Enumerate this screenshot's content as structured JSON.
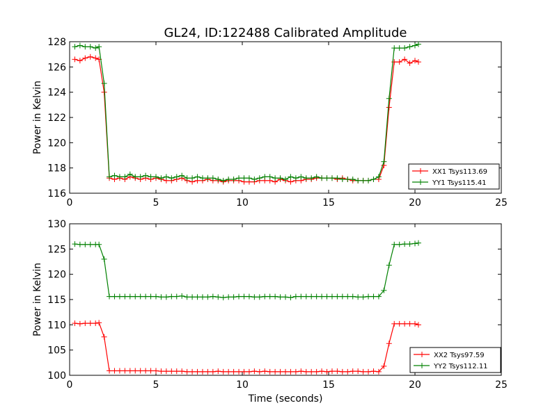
{
  "chart_data": [
    {
      "type": "line",
      "title": "GL24, ID:122488 Calibrated Amplitude",
      "xlabel": "",
      "ylabel": "Power in Kelvin",
      "xlim": [
        0,
        25
      ],
      "ylim": [
        116,
        128
      ],
      "xticks": [
        "0",
        "5",
        "10",
        "15",
        "20",
        "25"
      ],
      "yticks": [
        "116",
        "118",
        "120",
        "122",
        "124",
        "126",
        "128"
      ],
      "grid": false,
      "legend_position": "lower-right",
      "x": [
        0.3,
        0.6,
        0.9,
        1.2,
        1.5,
        1.7,
        2.0,
        2.3,
        2.6,
        2.9,
        3.2,
        3.5,
        3.8,
        4.1,
        4.4,
        4.7,
        5.0,
        5.3,
        5.6,
        5.9,
        6.2,
        6.5,
        6.8,
        7.1,
        7.4,
        7.7,
        8.0,
        8.3,
        8.6,
        8.9,
        9.2,
        9.5,
        9.8,
        10.1,
        10.4,
        10.7,
        11.0,
        11.3,
        11.6,
        11.9,
        12.2,
        12.5,
        12.8,
        13.1,
        13.4,
        13.7,
        14.0,
        14.3,
        14.6,
        14.9,
        15.2,
        15.5,
        15.8,
        16.1,
        16.4,
        16.7,
        17.0,
        17.3,
        17.6,
        17.9,
        18.2,
        18.5,
        18.8,
        19.1,
        19.4,
        19.7,
        20.0,
        20.2
      ],
      "series": [
        {
          "name": "XX1 Tsys113.69",
          "color": "#ff0000",
          "values": [
            126.6,
            126.5,
            126.7,
            126.8,
            126.7,
            126.6,
            124.0,
            117.2,
            117.1,
            117.2,
            117.1,
            117.3,
            117.2,
            117.1,
            117.2,
            117.1,
            117.2,
            117.1,
            117.0,
            117.0,
            117.1,
            117.2,
            117.0,
            116.9,
            117.0,
            117.0,
            117.1,
            117.0,
            117.0,
            116.9,
            117.0,
            117.0,
            117.0,
            116.9,
            116.9,
            116.9,
            117.0,
            117.0,
            117.0,
            116.9,
            117.1,
            117.0,
            116.9,
            117.0,
            117.0,
            117.1,
            117.1,
            117.2,
            117.2,
            117.2,
            117.2,
            117.1,
            117.2,
            117.1,
            117.0,
            117.0,
            117.0,
            117.0,
            117.1,
            117.1,
            118.2,
            122.8,
            126.4,
            126.4,
            126.6,
            126.3,
            126.5,
            126.4
          ]
        },
        {
          "name": "YY1 Tsys115.41",
          "color": "#008000",
          "values": [
            127.6,
            127.7,
            127.6,
            127.6,
            127.5,
            127.6,
            124.7,
            117.3,
            117.4,
            117.3,
            117.3,
            117.5,
            117.3,
            117.3,
            117.4,
            117.3,
            117.3,
            117.2,
            117.3,
            117.2,
            117.3,
            117.4,
            117.2,
            117.2,
            117.3,
            117.2,
            117.2,
            117.2,
            117.1,
            117.0,
            117.1,
            117.1,
            117.2,
            117.2,
            117.2,
            117.1,
            117.2,
            117.3,
            117.3,
            117.2,
            117.2,
            117.1,
            117.3,
            117.2,
            117.3,
            117.2,
            117.2,
            117.3,
            117.2,
            117.2,
            117.2,
            117.2,
            117.1,
            117.1,
            117.1,
            117.0,
            117.0,
            117.0,
            117.1,
            117.3,
            118.5,
            123.5,
            127.5,
            127.5,
            127.5,
            127.6,
            127.7,
            127.8
          ]
        }
      ]
    },
    {
      "type": "line",
      "title": "",
      "xlabel": "Time (seconds)",
      "ylabel": "Power in Kelvin",
      "xlim": [
        0,
        25
      ],
      "ylim": [
        100,
        130
      ],
      "xticks": [
        "0",
        "5",
        "10",
        "15",
        "20",
        "25"
      ],
      "yticks": [
        "100",
        "105",
        "110",
        "115",
        "120",
        "125",
        "130"
      ],
      "grid": false,
      "legend_position": "lower-right",
      "x": [
        0.3,
        0.6,
        0.9,
        1.2,
        1.5,
        1.7,
        2.0,
        2.3,
        2.6,
        2.9,
        3.2,
        3.5,
        3.8,
        4.1,
        4.4,
        4.7,
        5.0,
        5.3,
        5.6,
        5.9,
        6.2,
        6.5,
        6.8,
        7.1,
        7.4,
        7.7,
        8.0,
        8.3,
        8.6,
        8.9,
        9.2,
        9.5,
        9.8,
        10.1,
        10.4,
        10.7,
        11.0,
        11.3,
        11.6,
        11.9,
        12.2,
        12.5,
        12.8,
        13.1,
        13.4,
        13.7,
        14.0,
        14.3,
        14.6,
        14.9,
        15.2,
        15.5,
        15.8,
        16.1,
        16.4,
        16.7,
        17.0,
        17.3,
        17.6,
        17.9,
        18.2,
        18.5,
        18.8,
        19.1,
        19.4,
        19.7,
        20.0,
        20.2
      ],
      "series": [
        {
          "name": "XX2 Tsys97.59",
          "color": "#ff0000",
          "values": [
            110.3,
            110.2,
            110.3,
            110.3,
            110.3,
            110.4,
            107.6,
            100.9,
            100.9,
            100.9,
            100.9,
            100.9,
            100.9,
            100.9,
            100.9,
            100.9,
            100.9,
            100.8,
            100.8,
            100.8,
            100.8,
            100.8,
            100.7,
            100.7,
            100.7,
            100.7,
            100.7,
            100.7,
            100.8,
            100.7,
            100.7,
            100.7,
            100.7,
            100.7,
            100.7,
            100.8,
            100.7,
            100.8,
            100.7,
            100.7,
            100.7,
            100.7,
            100.7,
            100.7,
            100.8,
            100.7,
            100.7,
            100.7,
            100.8,
            100.7,
            100.8,
            100.8,
            100.7,
            100.7,
            100.8,
            100.8,
            100.7,
            100.7,
            100.8,
            100.7,
            101.8,
            106.3,
            110.2,
            110.2,
            110.2,
            110.2,
            110.2,
            110.0
          ]
        },
        {
          "name": "YY2 Tsys112.11",
          "color": "#008000",
          "values": [
            126.0,
            125.9,
            125.9,
            125.9,
            125.9,
            125.9,
            123.0,
            115.6,
            115.6,
            115.6,
            115.6,
            115.6,
            115.6,
            115.6,
            115.6,
            115.6,
            115.6,
            115.5,
            115.5,
            115.6,
            115.6,
            115.7,
            115.5,
            115.5,
            115.5,
            115.5,
            115.5,
            115.6,
            115.5,
            115.4,
            115.5,
            115.5,
            115.6,
            115.6,
            115.6,
            115.5,
            115.5,
            115.6,
            115.6,
            115.6,
            115.5,
            115.5,
            115.4,
            115.6,
            115.6,
            115.6,
            115.6,
            115.6,
            115.6,
            115.6,
            115.6,
            115.6,
            115.6,
            115.6,
            115.6,
            115.5,
            115.5,
            115.6,
            115.6,
            115.6,
            116.8,
            121.8,
            125.9,
            125.9,
            126.0,
            126.0,
            126.1,
            126.2
          ]
        }
      ]
    }
  ]
}
